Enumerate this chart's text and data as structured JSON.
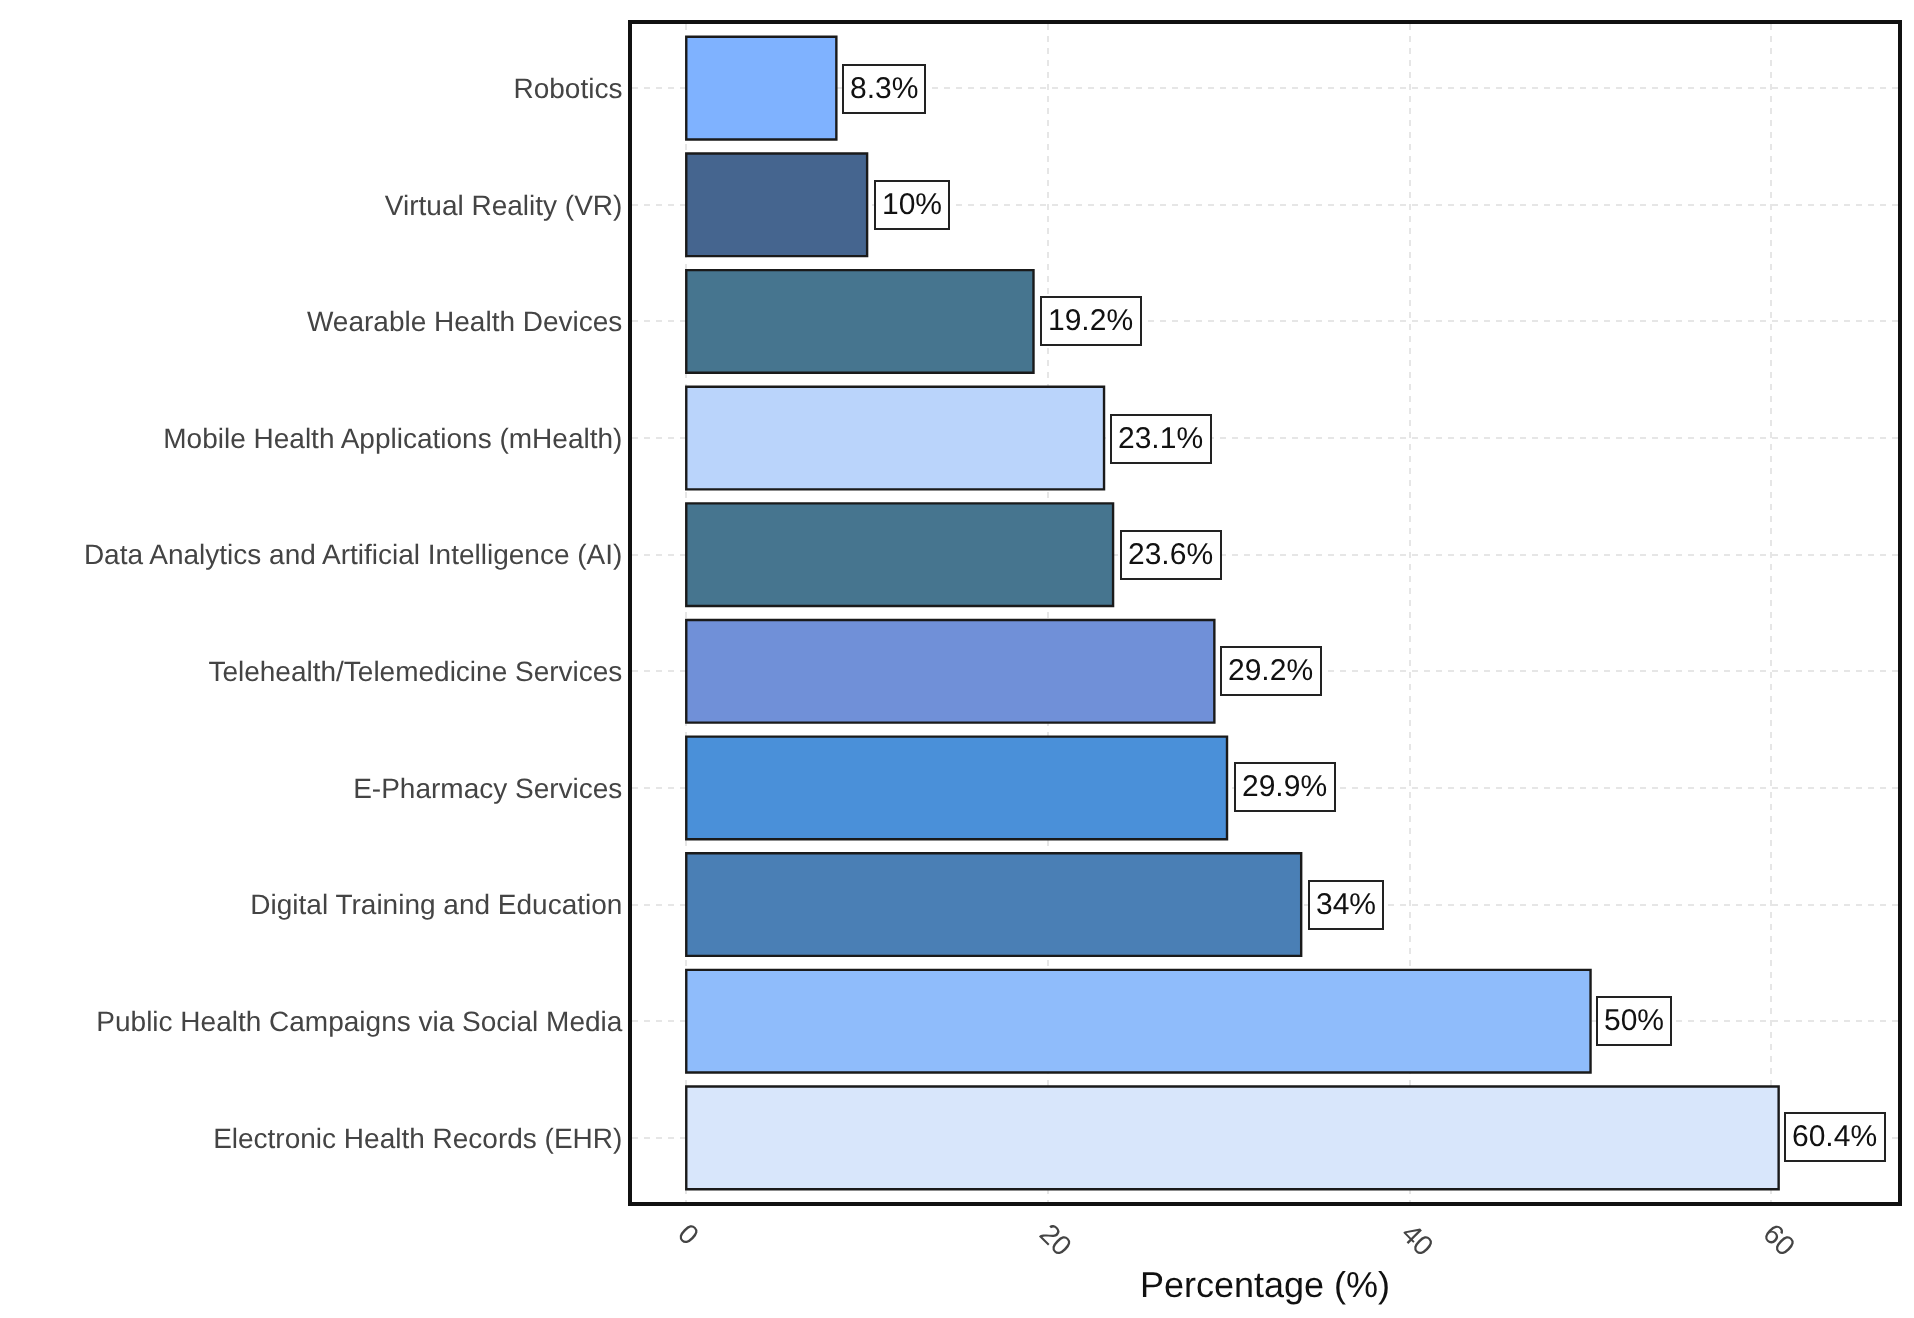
{
  "chart_data": {
    "type": "bar",
    "orientation": "horizontal",
    "xlabel": "Percentage (%)",
    "categories": [
      "Robotics",
      "Virtual Reality (VR)",
      "Wearable Health Devices",
      "Mobile Health Applications (mHealth)",
      "Data Analytics and Artificial Intelligence (AI)",
      "Telehealth/Telemedicine Services",
      "E-Pharmacy Services",
      "Digital Training and Education",
      "Public Health Campaigns via Social Media",
      "Electronic Health Records (EHR)"
    ],
    "values": [
      8.3,
      10,
      19.2,
      23.1,
      23.6,
      29.2,
      29.9,
      34,
      50,
      60.4
    ],
    "value_labels": [
      "8.3%",
      "10%",
      "19.2%",
      "23.1%",
      "23.6%",
      "29.2%",
      "29.9%",
      "34%",
      "50%",
      "60.4%"
    ],
    "colors": [
      "#7fb2ff",
      "#45658f",
      "#46758f",
      "#bad4fb",
      "#46758f",
      "#7090d8",
      "#4a90d9",
      "#4a7fb5",
      "#8fbcfb",
      "#d8e6fb"
    ],
    "xlim": [
      -3,
      67
    ],
    "xticks": [
      0,
      20,
      40,
      60
    ],
    "grid": true
  }
}
